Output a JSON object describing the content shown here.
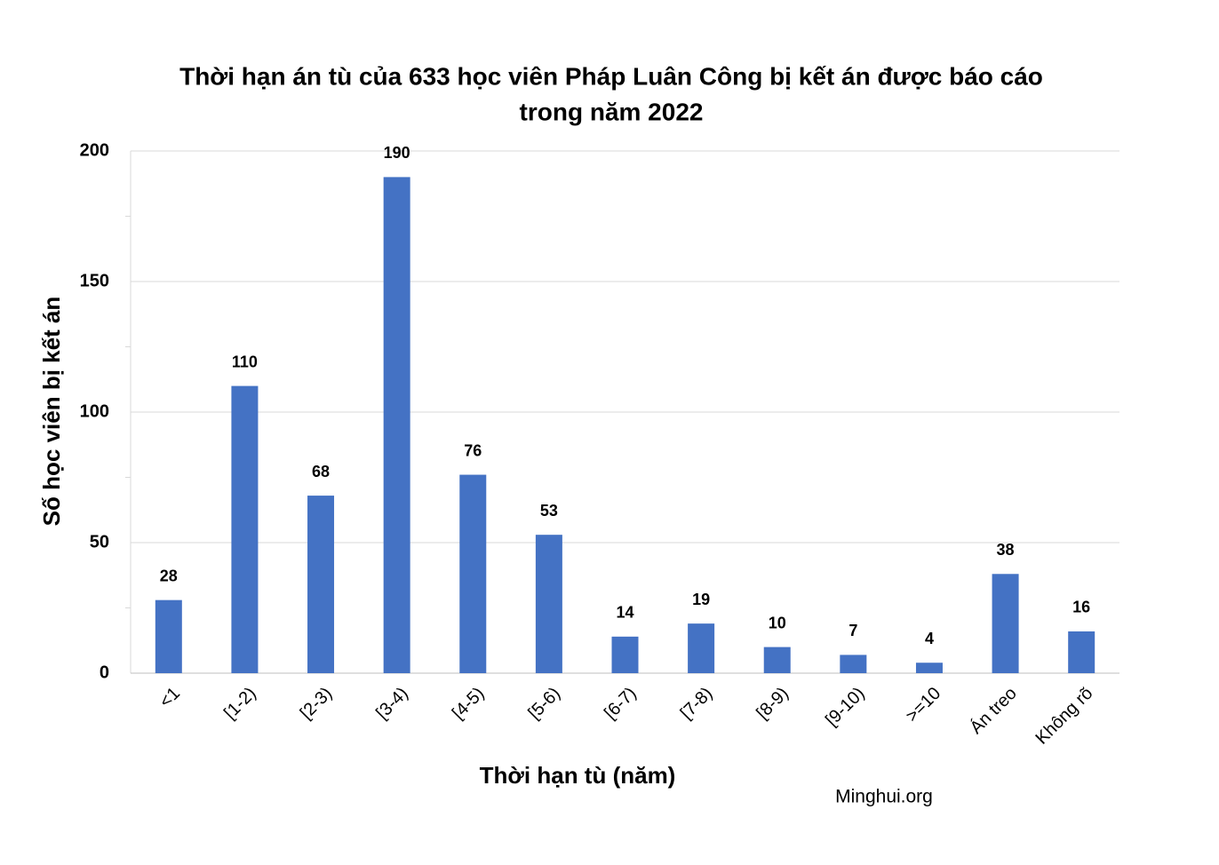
{
  "chart_data": {
    "type": "bar",
    "title": [
      "Thời hạn án tù của 633 học viên Pháp Luân Công bị kết án được báo cáo",
      "trong năm 2022"
    ],
    "x_label": "Thời hạn tù (năm)",
    "y_label": "Số học viên bị kết án",
    "source": "Minghui.org",
    "categories": [
      "<1",
      "[1-2)",
      "[2-3)",
      "[3-4)",
      "[4-5)",
      "[5-6)",
      "[6-7)",
      "[7-8)",
      "[8-9)",
      "[9-10)",
      ">=10",
      "Án treo",
      "Không rõ"
    ],
    "values": [
      28,
      110,
      68,
      190,
      76,
      53,
      14,
      19,
      10,
      7,
      4,
      38,
      16
    ],
    "color": "#4472c4",
    "ylim": [
      0,
      200
    ],
    "yticks": [
      0,
      50,
      100,
      150,
      200
    ],
    "grid": true
  }
}
